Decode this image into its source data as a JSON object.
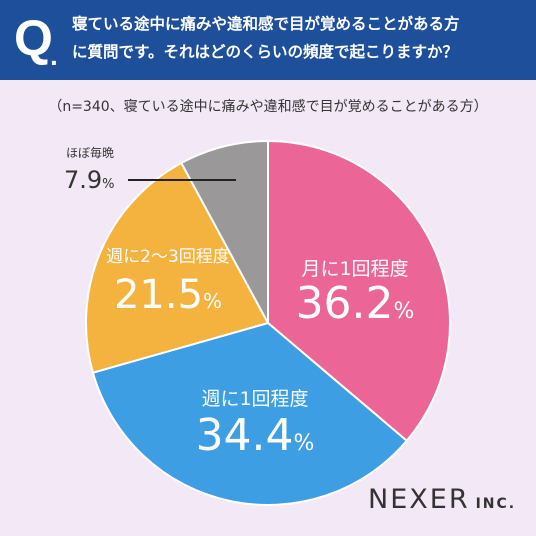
{
  "question": {
    "mark": "Q",
    "dot": ".",
    "line1": "寝ている途中に痛みや違和感で目が覚めることがある方",
    "line2": "に質問です。それはどのくらいの頻度で起こりますか？"
  },
  "sample_note": "（n=340、寝ている途中に痛みや違和感で目が覚めることがある方）",
  "logo": {
    "main": "NEXER",
    "sub": "INC."
  },
  "chart_data": {
    "type": "pie",
    "start_angle_deg": 0,
    "direction": "clockwise",
    "slices": [
      {
        "label": "月に1回程度",
        "value": 36.2,
        "color": "#ec6597",
        "display": "36.2"
      },
      {
        "label": "週に1回程度",
        "value": 34.4,
        "color": "#3d9ee3",
        "display": "34.4"
      },
      {
        "label": "週に2〜3回程度",
        "value": 21.5,
        "color": "#f4b23f",
        "display": "21.5"
      },
      {
        "label": "ほぼ毎晩",
        "value": 7.9,
        "color": "#9a9898",
        "display": "7.9"
      }
    ],
    "unit": "%",
    "border_color": "#ffffff"
  }
}
